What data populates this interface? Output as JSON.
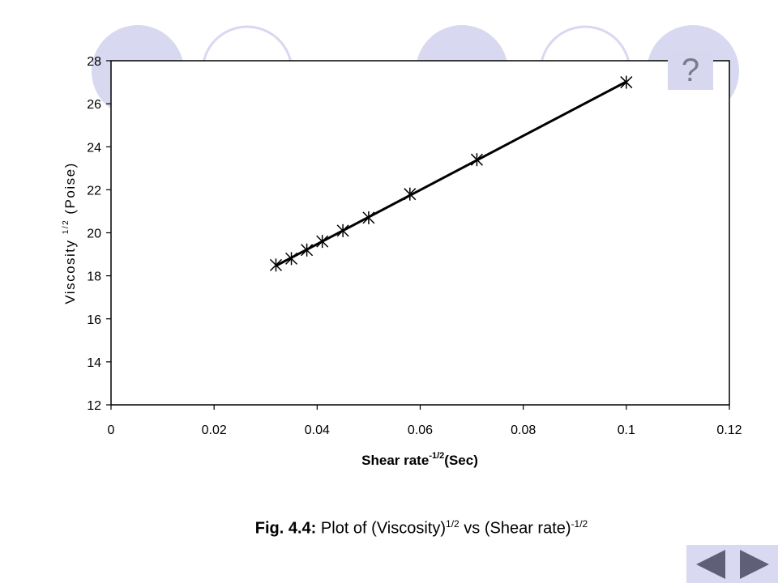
{
  "help": {
    "label": "?"
  },
  "caption": {
    "fig_label": "Fig. 4.4:",
    "text_prefix": "Plot of (Viscosity)",
    "exp1": "1/2",
    "text_mid": " vs (Shear rate)",
    "exp2": "-1/2"
  },
  "colors": {
    "circle": "#d8d8f0",
    "circle_outline": "#d8d8f0",
    "accent": "#d9d9f2",
    "nav_arrow": "#5f5f78"
  },
  "icons": {
    "help": "question-mark-icon",
    "prev": "triangle-left-icon",
    "next": "triangle-right-icon"
  },
  "chart_data": {
    "type": "scatter",
    "title": "",
    "xlabel_main": "Shear rate",
    "xlabel_sup": "-1/2",
    "xlabel_tail": "(Sec)",
    "ylabel_main": "Viscosity ",
    "ylabel_sup": "1/2",
    "ylabel_tail": " (Poise)",
    "xlim": [
      0,
      0.12
    ],
    "ylim": [
      12,
      28
    ],
    "x_ticks": [
      "0",
      "0.02",
      "0.04",
      "0.06",
      "0.08",
      "0.1",
      "0.12"
    ],
    "y_ticks": [
      "12",
      "14",
      "16",
      "18",
      "20",
      "22",
      "24",
      "26",
      "28"
    ],
    "grid": false,
    "legend": "none",
    "series": [
      {
        "x": [
          0.032,
          0.035,
          0.038,
          0.041,
          0.045,
          0.05,
          0.058,
          0.071,
          0.1
        ],
        "y": [
          18.5,
          18.8,
          19.2,
          19.6,
          20.1,
          20.7,
          21.8,
          23.4,
          27.0
        ],
        "marker": "asterisk",
        "trendline": true
      }
    ]
  }
}
